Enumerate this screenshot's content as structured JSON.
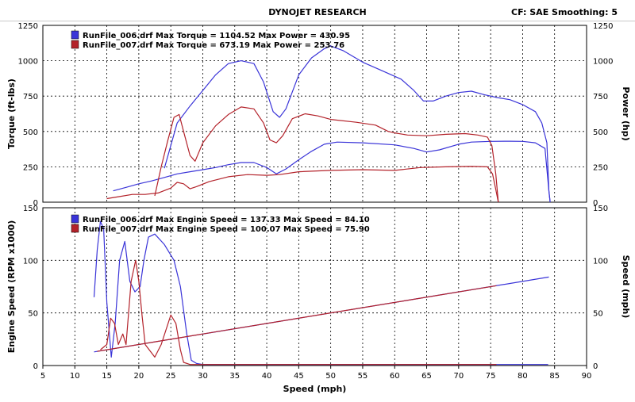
{
  "header": {
    "title": "DYNOJET RESEARCH",
    "cf_smoothing": "CF: SAE  Smoothing: 5"
  },
  "colors": {
    "run_006": "#3a34d8",
    "run_007": "#b3222a",
    "grid": "#000000"
  },
  "chart_data": [
    {
      "type": "line",
      "panel": "top",
      "ylabel": "Torque (ft-lbs)",
      "y2label": "Power (hp)",
      "xlim": [
        5,
        90
      ],
      "ylim": [
        0,
        1250
      ],
      "y2lim": [
        0,
        1250
      ],
      "xticks": [
        5,
        10,
        15,
        20,
        25,
        30,
        35,
        40,
        45,
        50,
        55,
        60,
        65,
        70,
        75,
        80,
        85,
        90
      ],
      "yticks": [
        0,
        250,
        500,
        750,
        1000,
        1250
      ],
      "grid": true,
      "legend": [
        {
          "name": "RunFile_006.drf Max Torque = 1104.52 Max Power = 430.95",
          "color": "run_006"
        },
        {
          "name": "RunFile_007.drf Max Torque = 673.19 Max Power = 253.76",
          "color": "run_007"
        }
      ],
      "series": [
        {
          "name": "RunFile_006.drf torque",
          "color": "run_006",
          "points": [
            [
              24,
              240
            ],
            [
              26,
              560
            ],
            [
              28,
              680
            ],
            [
              30,
              790
            ],
            [
              32,
              900
            ],
            [
              34,
              980
            ],
            [
              36,
              1000
            ],
            [
              38,
              980
            ],
            [
              39.5,
              850
            ],
            [
              41,
              640
            ],
            [
              42,
              600
            ],
            [
              43,
              660
            ],
            [
              45,
              900
            ],
            [
              47,
              1020
            ],
            [
              49,
              1085
            ],
            [
              50,
              1105
            ],
            [
              52,
              1070
            ],
            [
              55,
              990
            ],
            [
              58,
              930
            ],
            [
              61,
              870
            ],
            [
              63,
              790
            ],
            [
              64.5,
              715
            ],
            [
              66,
              715
            ],
            [
              68,
              750
            ],
            [
              70,
              775
            ],
            [
              72,
              785
            ],
            [
              74,
              760
            ],
            [
              76,
              740
            ],
            [
              78,
              725
            ],
            [
              80,
              690
            ],
            [
              82,
              640
            ],
            [
              83,
              560
            ],
            [
              83.8,
              420
            ],
            [
              84.1,
              80
            ],
            [
              84.3,
              0
            ]
          ]
        },
        {
          "name": "RunFile_006.drf power",
          "color": "run_006",
          "points": [
            [
              16,
              80
            ],
            [
              18,
              105
            ],
            [
              20,
              130
            ],
            [
              22,
              150
            ],
            [
              24,
              175
            ],
            [
              26,
              200
            ],
            [
              28,
              215
            ],
            [
              30,
              230
            ],
            [
              32,
              245
            ],
            [
              34,
              265
            ],
            [
              36,
              280
            ],
            [
              38,
              280
            ],
            [
              40,
              245
            ],
            [
              41.5,
              200
            ],
            [
              43,
              235
            ],
            [
              45,
              300
            ],
            [
              47,
              360
            ],
            [
              49,
              410
            ],
            [
              51,
              425
            ],
            [
              55,
              420
            ],
            [
              60,
              405
            ],
            [
              63,
              380
            ],
            [
              65,
              355
            ],
            [
              67,
              370
            ],
            [
              70,
              410
            ],
            [
              72,
              425
            ],
            [
              75,
              430
            ],
            [
              78,
              431
            ],
            [
              80,
              430
            ],
            [
              82,
              420
            ],
            [
              83.5,
              380
            ],
            [
              84.1,
              80
            ],
            [
              84.3,
              0
            ]
          ]
        },
        {
          "name": "RunFile_007.drf torque",
          "color": "run_007",
          "points": [
            [
              22.5,
              45
            ],
            [
              23.5,
              250
            ],
            [
              24.5,
              430
            ],
            [
              25.5,
              600
            ],
            [
              26.3,
              620
            ],
            [
              27,
              500
            ],
            [
              28,
              330
            ],
            [
              28.8,
              290
            ],
            [
              30,
              420
            ],
            [
              32,
              540
            ],
            [
              34,
              620
            ],
            [
              36,
              673
            ],
            [
              38,
              660
            ],
            [
              39.5,
              560
            ],
            [
              40.5,
              440
            ],
            [
              41.5,
              420
            ],
            [
              42.5,
              470
            ],
            [
              44,
              590
            ],
            [
              46,
              625
            ],
            [
              48,
              610
            ],
            [
              50,
              585
            ],
            [
              54,
              565
            ],
            [
              57,
              545
            ],
            [
              59,
              500
            ],
            [
              60,
              490
            ],
            [
              62,
              475
            ],
            [
              65,
              470
            ],
            [
              68,
              480
            ],
            [
              71,
              485
            ],
            [
              73,
              475
            ],
            [
              74.5,
              460
            ],
            [
              75.2,
              400
            ],
            [
              75.8,
              200
            ],
            [
              76.2,
              0
            ]
          ]
        },
        {
          "name": "RunFile_007.drf power",
          "color": "run_007",
          "points": [
            [
              15,
              25
            ],
            [
              17,
              40
            ],
            [
              19,
              55
            ],
            [
              21,
              55
            ],
            [
              23,
              65
            ],
            [
              25,
              100
            ],
            [
              26,
              140
            ],
            [
              27,
              130
            ],
            [
              28,
              95
            ],
            [
              29,
              110
            ],
            [
              31,
              145
            ],
            [
              34,
              180
            ],
            [
              37,
              195
            ],
            [
              40,
              190
            ],
            [
              42,
              195
            ],
            [
              45,
              215
            ],
            [
              50,
              225
            ],
            [
              55,
              230
            ],
            [
              60,
              225
            ],
            [
              64,
              245
            ],
            [
              68,
              250
            ],
            [
              72,
              253
            ],
            [
              74.5,
              250
            ],
            [
              75.3,
              200
            ],
            [
              75.8,
              90
            ],
            [
              76.2,
              0
            ]
          ]
        }
      ]
    },
    {
      "type": "line",
      "panel": "bottom",
      "xlabel": "Speed (mph)",
      "ylabel": "Engine Speed (RPM x1000)",
      "y2label": "Speed (mph)",
      "xlim": [
        5,
        90
      ],
      "ylim": [
        0,
        150
      ],
      "y2lim": [
        0,
        150
      ],
      "xticks": [
        5,
        10,
        15,
        20,
        25,
        30,
        35,
        40,
        45,
        50,
        55,
        60,
        65,
        70,
        75,
        80,
        85,
        90
      ],
      "yticks": [
        0,
        50,
        100,
        150
      ],
      "grid": true,
      "legend": [
        {
          "name": "RunFile_006.drf Max Engine Speed = 137.33 Max Speed = 84.10",
          "color": "run_006"
        },
        {
          "name": "RunFile_007.drf Max Engine Speed = 100.07 Max Speed = 75.90",
          "color": "run_007"
        }
      ],
      "series": [
        {
          "name": "RunFile_006.drf engine speed",
          "color": "run_006",
          "points": [
            [
              13,
              65
            ],
            [
              13.5,
              110
            ],
            [
              14,
              137
            ],
            [
              14.5,
              130
            ],
            [
              15,
              60
            ],
            [
              15.7,
              8
            ],
            [
              16.3,
              40
            ],
            [
              17,
              100
            ],
            [
              17.8,
              118
            ],
            [
              18.6,
              80
            ],
            [
              19.4,
              70
            ],
            [
              20.2,
              75
            ],
            [
              20.8,
              100
            ],
            [
              21.5,
              122
            ],
            [
              22.5,
              125
            ],
            [
              24,
              115
            ],
            [
              25.5,
              100
            ],
            [
              26.5,
              75
            ],
            [
              27.5,
              30
            ],
            [
              28.2,
              5
            ],
            [
              29,
              2
            ],
            [
              30,
              1
            ],
            [
              32,
              1
            ],
            [
              50,
              1
            ],
            [
              70,
              1
            ],
            [
              84,
              1
            ]
          ]
        },
        {
          "name": "RunFile_007.drf engine speed",
          "color": "run_007",
          "points": [
            [
              14,
              15
            ],
            [
              15,
              20
            ],
            [
              15.6,
              45
            ],
            [
              16.2,
              40
            ],
            [
              16.8,
              20
            ],
            [
              17.5,
              30
            ],
            [
              18,
              20
            ],
            [
              18.8,
              80
            ],
            [
              19.5,
              100
            ],
            [
              20,
              80
            ],
            [
              20.5,
              48
            ],
            [
              21,
              20
            ],
            [
              22,
              12
            ],
            [
              22.5,
              8
            ],
            [
              23.5,
              20
            ],
            [
              25,
              48
            ],
            [
              25.8,
              40
            ],
            [
              26.5,
              15
            ],
            [
              27,
              3
            ],
            [
              28,
              1
            ],
            [
              30,
              1
            ],
            [
              40,
              1
            ],
            [
              60,
              1
            ],
            [
              75.9,
              1
            ]
          ]
        },
        {
          "name": "RunFile_006.drf speed",
          "color": "run_006",
          "points": [
            [
              13,
              13
            ],
            [
              84.1,
              84.1
            ]
          ]
        },
        {
          "name": "RunFile_007.drf speed",
          "color": "run_007",
          "points": [
            [
              13.5,
              13.5
            ],
            [
              75.9,
              75.9
            ]
          ]
        }
      ]
    }
  ]
}
